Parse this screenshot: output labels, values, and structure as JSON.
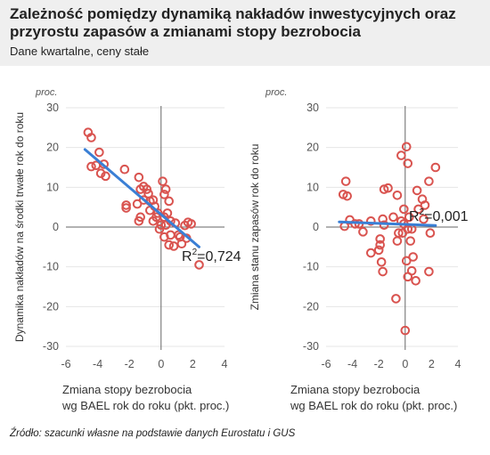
{
  "title": "Zależność pomiędzy dynamiką nakładów inwestycyjnych oraz przyrostu zapasów a zmianami stopy bezrobocia",
  "subtitle": "Dane kwartalne, ceny stałe",
  "source": "Źródło: szacunki własne na podstawie danych Eurostatu i GUS",
  "colors": {
    "points": "#d9534f",
    "trend": "#3a7fd5",
    "axis": "#666666",
    "grid": "#e6e6e6",
    "header_bg": "#efefef"
  },
  "chart_data": [
    {
      "type": "scatter",
      "name": "investment",
      "unit_label": "proc.",
      "ylabel": "Dynamika nakładów na środki trwałe rok do roku",
      "xlabel": [
        "Zmiana stopy bezrobocia",
        "wg BAEL rok do roku (pkt. proc.)"
      ],
      "xlim": [
        -6,
        4
      ],
      "ylim": [
        -30,
        30
      ],
      "xticks": [
        -6,
        -4,
        -2,
        0,
        2,
        4
      ],
      "yticks": [
        30,
        20,
        10,
        0,
        -10,
        -20,
        -30
      ],
      "grid": true,
      "r2_label": "R",
      "r2_sup": "2",
      "r2_value": "=0,724",
      "trend": {
        "x": [
          -4.8,
          2.4
        ],
        "y": [
          19.5,
          -5
        ]
      },
      "points": [
        [
          -4.6,
          23.8
        ],
        [
          -4.4,
          22.5
        ],
        [
          -3.9,
          18.8
        ],
        [
          -4.4,
          15.2
        ],
        [
          -4.1,
          15.5
        ],
        [
          -3.6,
          15.8
        ],
        [
          -3.8,
          13.5
        ],
        [
          -3.5,
          12.8
        ],
        [
          -2.3,
          14.5
        ],
        [
          -2.2,
          5.5
        ],
        [
          -2.2,
          4.8
        ],
        [
          -1.4,
          12.5
        ],
        [
          -1.3,
          9.5
        ],
        [
          -1.1,
          10.2
        ],
        [
          -0.9,
          9.5
        ],
        [
          -0.8,
          8.4
        ],
        [
          -0.7,
          6.5
        ],
        [
          -1.5,
          5.8
        ],
        [
          -1.3,
          2.5
        ],
        [
          -1.1,
          6.8
        ],
        [
          -0.7,
          4.2
        ],
        [
          -0.5,
          6.8
        ],
        [
          -0.4,
          5.2
        ],
        [
          -0.2,
          3.5
        ],
        [
          -0.3,
          2.5
        ],
        [
          -1.4,
          1.5
        ],
        [
          -0.5,
          1.5
        ],
        [
          0.1,
          11.5
        ],
        [
          0.3,
          9.5
        ],
        [
          0.2,
          8.2
        ],
        [
          0.5,
          6.5
        ],
        [
          0.4,
          3.5
        ],
        [
          0.2,
          2.5
        ],
        [
          0.0,
          0.5
        ],
        [
          0.3,
          0.5
        ],
        [
          0.6,
          1.5
        ],
        [
          0.9,
          1.0
        ],
        [
          0.2,
          -2.5
        ],
        [
          0.5,
          -4.5
        ],
        [
          0.6,
          -2.0
        ],
        [
          0.8,
          -4.8
        ],
        [
          1.2,
          -2.5
        ],
        [
          1.5,
          0.4
        ],
        [
          1.3,
          -4.2
        ],
        [
          1.7,
          1.2
        ],
        [
          1.9,
          0.8
        ],
        [
          1.6,
          -2.8
        ],
        [
          2.4,
          -9.5
        ],
        [
          1.1,
          -2.0
        ],
        [
          -0.1,
          -0.5
        ]
      ]
    },
    {
      "type": "scatter",
      "name": "inventories",
      "unit_label": "proc.",
      "ylabel": "Zmiana stanu zapasów rok do roku",
      "xlabel": [
        "Zmiana stopy bezrobocia",
        "wg BAEL rok do roku (pkt. proc.)"
      ],
      "xlim": [
        -6,
        4
      ],
      "ylim": [
        -30,
        30
      ],
      "xticks": [
        -6,
        -4,
        -2,
        0,
        2,
        4
      ],
      "yticks": [
        30,
        20,
        10,
        0,
        -10,
        -20,
        -30
      ],
      "grid": true,
      "r2_label": "R",
      "r2_sup": "2",
      "r2_value": "=0,001",
      "trend": {
        "x": [
          -5,
          2.3
        ],
        "y": [
          1.3,
          0.4
        ]
      },
      "points": [
        [
          -4.5,
          11.5
        ],
        [
          -4.7,
          8.2
        ],
        [
          -4.4,
          7.8
        ],
        [
          -4.2,
          1.8
        ],
        [
          -3.8,
          0.8
        ],
        [
          -4.6,
          0.2
        ],
        [
          -3.5,
          0.8
        ],
        [
          -3.2,
          -1.2
        ],
        [
          -2.6,
          1.5
        ],
        [
          -2.6,
          -6.5
        ],
        [
          -1.9,
          -4.5
        ],
        [
          -2.0,
          -5.8
        ],
        [
          -1.8,
          -8.8
        ],
        [
          -1.7,
          -11.2
        ],
        [
          -1.6,
          0.5
        ],
        [
          -1.7,
          2.0
        ],
        [
          -1.9,
          -3.0
        ],
        [
          -1.6,
          9.5
        ],
        [
          -1.3,
          9.8
        ],
        [
          -0.9,
          2.5
        ],
        [
          -0.6,
          8.0
        ],
        [
          -0.3,
          1.5
        ],
        [
          -0.5,
          -1.5
        ],
        [
          -0.6,
          -3.5
        ],
        [
          -0.2,
          -1.5
        ],
        [
          -0.7,
          -18.0
        ],
        [
          -0.3,
          18.0
        ],
        [
          0.1,
          20.2
        ],
        [
          0.2,
          16.0
        ],
        [
          -0.1,
          4.5
        ],
        [
          0.3,
          2.5
        ],
        [
          0.2,
          -0.5
        ],
        [
          0.4,
          -3.5
        ],
        [
          0.1,
          -8.5
        ],
        [
          0.2,
          -12.5
        ],
        [
          0.5,
          -11.0
        ],
        [
          0.6,
          -7.5
        ],
        [
          0.8,
          -13.5
        ],
        [
          0.9,
          9.2
        ],
        [
          1.0,
          4.5
        ],
        [
          1.3,
          7.0
        ],
        [
          1.4,
          2.0
        ],
        [
          1.5,
          5.5
        ],
        [
          1.8,
          11.5
        ],
        [
          2.3,
          15.0
        ],
        [
          1.9,
          -1.5
        ],
        [
          1.8,
          -11.2
        ],
        [
          0.0,
          -26.0
        ],
        [
          0.5,
          -0.5
        ],
        [
          -0.1,
          0.8
        ]
      ]
    }
  ]
}
